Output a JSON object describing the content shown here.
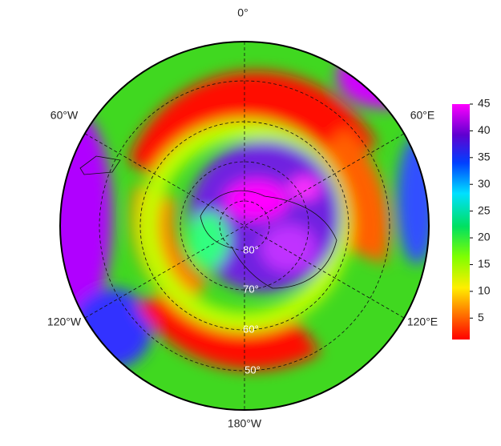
{
  "map": {
    "longitude_labels": [
      "0°",
      "60°E",
      "120°E",
      "180°W",
      "120°W",
      "60°W"
    ],
    "latitude_labels": [
      "80°",
      "70°",
      "60°",
      "50°"
    ],
    "colorbar": {
      "range": [
        1,
        45
      ],
      "ticks": [
        5,
        10,
        15,
        20,
        25,
        30,
        35,
        40,
        45
      ]
    }
  }
}
